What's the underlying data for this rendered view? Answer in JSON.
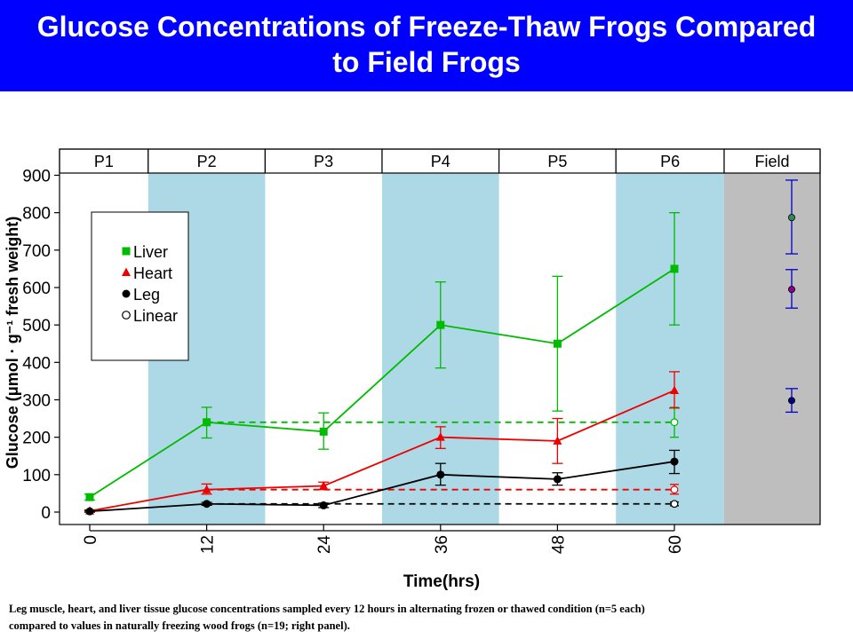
{
  "slide": {
    "title_line1": "Glucose Concentrations of Freeze-Thaw Frogs Compared",
    "title_line2": "to Field Frogs",
    "caption_line1": "Leg muscle, heart, and liver tissue glucose concentrations sampled every 12 hours in alternating frozen or thawed condition (n=5 each)",
    "caption_line2": "compared to values in naturally freezing wood frogs (n=19; right panel).",
    "banner_color": "#0000ff"
  },
  "chart_data": {
    "type": "line",
    "title": "",
    "xlabel": "Time(hrs)",
    "ylabel": "Glucose (μmol · g⁻¹ fresh weight)",
    "x": [
      0,
      12,
      24,
      36,
      48,
      60
    ],
    "x_ticks": [
      0,
      12,
      24,
      36,
      48,
      60
    ],
    "y_ticks": [
      0,
      100,
      200,
      300,
      400,
      500,
      600,
      700,
      800,
      900
    ],
    "ylim": [
      0,
      900
    ],
    "grid": false,
    "legend_position": "top-left",
    "periods": [
      {
        "label": "P1",
        "shaded": false
      },
      {
        "label": "P2",
        "shaded": true
      },
      {
        "label": "P3",
        "shaded": false
      },
      {
        "label": "P4",
        "shaded": true
      },
      {
        "label": "P5",
        "shaded": false
      },
      {
        "label": "P6",
        "shaded": true
      },
      {
        "label": "Field",
        "shaded": true
      }
    ],
    "period_color": "#add8e6",
    "field_color": "#bebebe",
    "series": [
      {
        "name": "Liver",
        "color": "#00bb00",
        "marker": "square",
        "values": [
          40,
          240,
          215,
          500,
          450,
          650
        ],
        "err_low": [
          32,
          198,
          168,
          385,
          270,
          500
        ],
        "err_high": [
          48,
          280,
          265,
          615,
          630,
          800
        ]
      },
      {
        "name": "Heart",
        "color": "#ee0000",
        "marker": "triangle",
        "values": [
          3,
          60,
          70,
          200,
          190,
          325
        ],
        "err_low": [
          0,
          48,
          60,
          170,
          130,
          278
        ],
        "err_high": [
          6,
          75,
          80,
          228,
          250,
          375
        ]
      },
      {
        "name": "Leg",
        "color": "#000000",
        "marker": "circle",
        "values": [
          2,
          22,
          18,
          100,
          88,
          135
        ],
        "err_low": [
          0,
          18,
          12,
          72,
          72,
          103
        ],
        "err_high": [
          4,
          26,
          24,
          130,
          105,
          165
        ]
      }
    ],
    "linear": {
      "name": "Linear",
      "x_start": 12,
      "x_end": 60,
      "lines": [
        {
          "color": "#00bb00",
          "value": 240,
          "err_low": 200,
          "err_high": 280
        },
        {
          "color": "#ee0000",
          "value": 60,
          "err_low": 48,
          "err_high": 74
        },
        {
          "color": "#000000",
          "value": 22,
          "err_low": 17,
          "err_high": 27
        }
      ]
    },
    "field": [
      {
        "color": "#2e8b57",
        "value": 787,
        "err_low": 690,
        "err_high": 887
      },
      {
        "color": "#8b008b",
        "value": 595,
        "err_low": 545,
        "err_high": 648
      },
      {
        "color": "#000080",
        "value": 298,
        "err_low": 267,
        "err_high": 330
      }
    ]
  }
}
